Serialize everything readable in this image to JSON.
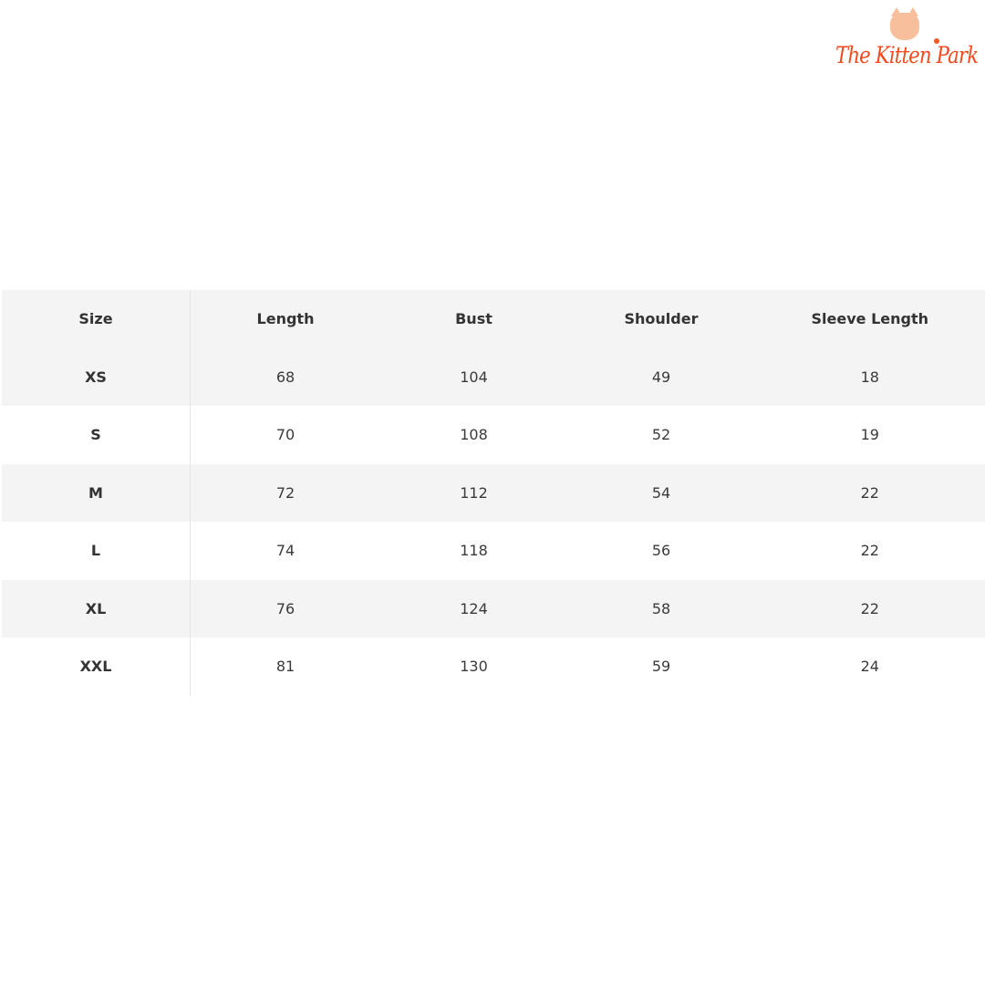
{
  "logo": {
    "text": "The Kitten Park",
    "brand_color": "#f04a1e"
  },
  "table": {
    "headers": [
      "Size",
      "Length",
      "Bust",
      "Shoulder",
      "Sleeve Length"
    ],
    "rows": [
      [
        "XS",
        "68",
        "104",
        "49",
        "18"
      ],
      [
        "S",
        "70",
        "108",
        "52",
        "19"
      ],
      [
        "M",
        "72",
        "112",
        "54",
        "22"
      ],
      [
        "L",
        "74",
        "118",
        "56",
        "22"
      ],
      [
        "XL",
        "76",
        "124",
        "58",
        "22"
      ],
      [
        "XXL",
        "81",
        "130",
        "59",
        "24"
      ]
    ]
  }
}
